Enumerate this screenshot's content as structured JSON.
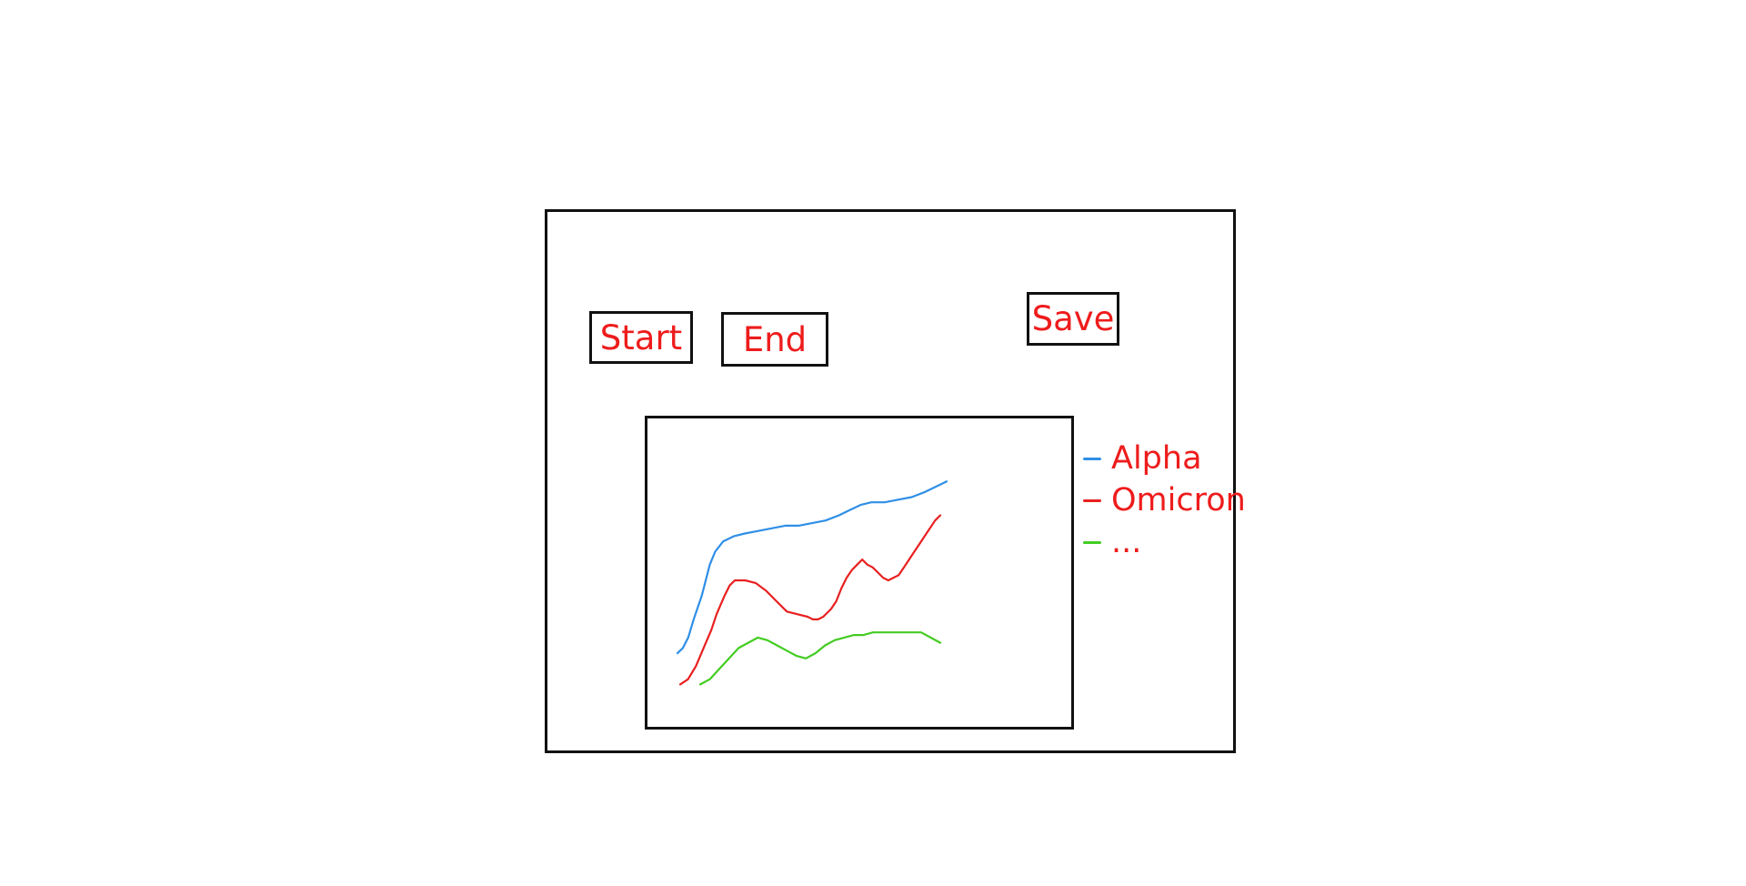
{
  "buttons": {
    "start_label": "Start",
    "end_label": "End",
    "save_label": "Save"
  },
  "colors": {
    "frame": "#111111",
    "text": "#ee1c1c",
    "background": "#ffffff"
  },
  "chart_data": {
    "type": "line",
    "title": "",
    "xlabel": "",
    "ylabel": "",
    "grid": false,
    "legend_position": "right",
    "xlim": [
      0,
      100
    ],
    "ylim": [
      0,
      100
    ],
    "series": [
      {
        "name": "Alpha",
        "color": "#2f8fe6",
        "x": [
          0,
          2,
          4,
          6,
          8,
          9,
          10,
          12,
          14,
          17,
          21,
          25,
          30,
          35,
          40,
          45,
          50,
          55,
          60,
          64,
          68,
          72,
          77,
          82,
          87,
          92,
          96,
          100
        ],
        "y": [
          22,
          24,
          28,
          35,
          41,
          44,
          48,
          56,
          61,
          65,
          67,
          68,
          69,
          70,
          71,
          71,
          72,
          73,
          75,
          77,
          79,
          80,
          80,
          81,
          82,
          84,
          86,
          88
        ]
      },
      {
        "name": "Omicron",
        "color": "#e82020",
        "x": [
          0,
          3,
          6,
          9,
          12,
          14,
          17,
          19,
          21,
          25,
          29,
          33,
          37,
          41,
          45,
          49,
          51,
          53,
          55,
          58,
          60,
          62,
          64,
          66,
          68,
          70,
          72,
          74,
          76,
          78,
          80,
          82,
          84,
          86,
          88,
          90,
          92,
          94,
          96,
          98,
          100
        ],
        "y": [
          10,
          12,
          17,
          24,
          31,
          37,
          44,
          48,
          50,
          50,
          49,
          46,
          42,
          38,
          37,
          36,
          35,
          35,
          36,
          39,
          42,
          47,
          51,
          54,
          56,
          58,
          56,
          55,
          53,
          51,
          50,
          51,
          52,
          55,
          58,
          61,
          64,
          67,
          70,
          73,
          75
        ]
      },
      {
        "name": "...",
        "color": "#44cc22",
        "x": [
          0,
          4,
          8,
          12,
          16,
          20,
          24,
          28,
          32,
          36,
          40,
          44,
          48,
          52,
          56,
          60,
          64,
          68,
          72,
          76,
          80,
          84,
          88,
          92,
          96,
          100
        ],
        "y": [
          10,
          12,
          16,
          20,
          24,
          26,
          28,
          27,
          25,
          23,
          21,
          20,
          22,
          25,
          27,
          28,
          29,
          29,
          30,
          30,
          30,
          30,
          30,
          30,
          28,
          26
        ]
      }
    ]
  }
}
